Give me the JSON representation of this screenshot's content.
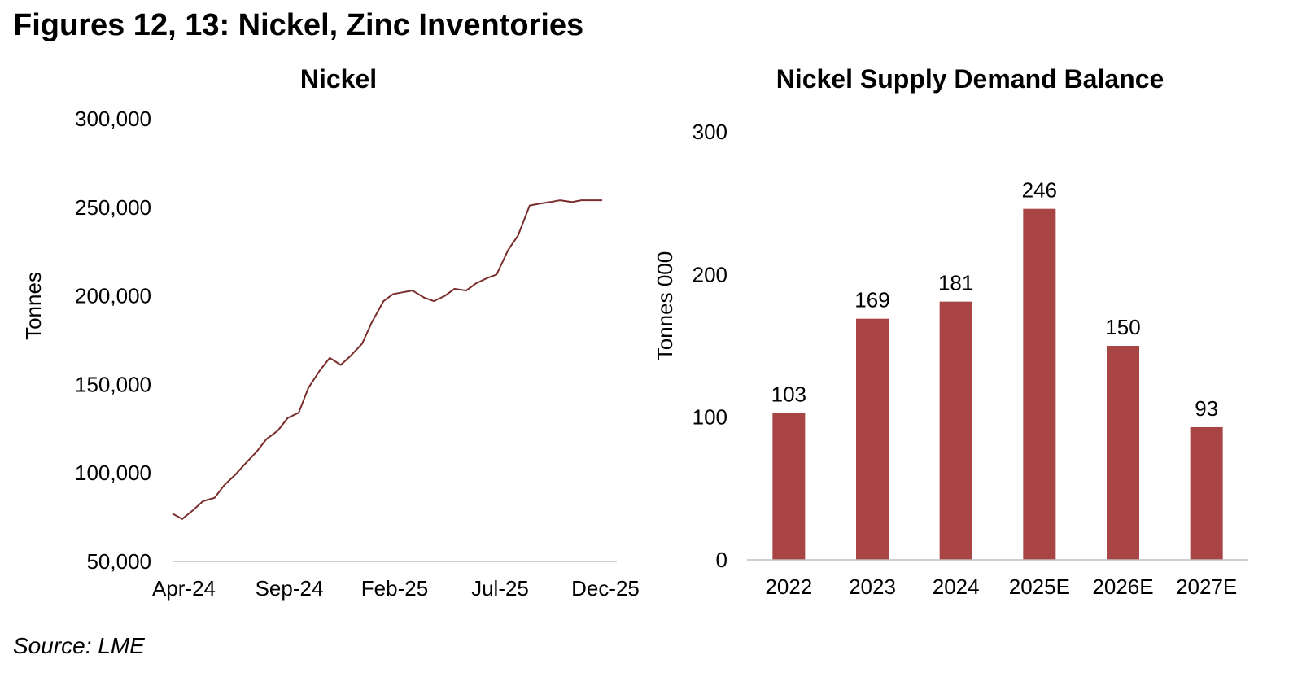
{
  "figure_title": "Figures 12, 13: Nickel, Zinc Inventories",
  "source": "Source: LME",
  "chart_data": [
    {
      "type": "line",
      "title": "Nickel",
      "xlabel": "",
      "ylabel": "Tonnes",
      "ylim": [
        50000,
        300000
      ],
      "yticks": [
        50000,
        100000,
        150000,
        200000,
        250000,
        300000
      ],
      "ytick_labels": [
        "50,000",
        "100,000",
        "150,000",
        "200,000",
        "250,000",
        "300,000"
      ],
      "xtick_labels": [
        "Apr-24",
        "Sep-24",
        "Feb-25",
        "Jul-25",
        "Dec-25"
      ],
      "grid": false,
      "color": "#7a2e2e",
      "series": [
        {
          "x": [
            "2024-04-01",
            "2024-04-15",
            "2024-05-01",
            "2024-05-15",
            "2024-06-01",
            "2024-06-15",
            "2024-07-01",
            "2024-07-15",
            "2024-08-01",
            "2024-08-15",
            "2024-09-01",
            "2024-09-15",
            "2024-10-01",
            "2024-10-15",
            "2024-11-01",
            "2024-11-15",
            "2024-12-01",
            "2024-12-15",
            "2025-01-01",
            "2025-01-15",
            "2025-02-01",
            "2025-02-15",
            "2025-03-01",
            "2025-03-15",
            "2025-04-01",
            "2025-04-15",
            "2025-05-01",
            "2025-05-15",
            "2025-06-01",
            "2025-06-15",
            "2025-07-01",
            "2025-07-15",
            "2025-08-01",
            "2025-08-15",
            "2025-09-01",
            "2025-09-15",
            "2025-10-01",
            "2025-10-15",
            "2025-11-01",
            "2025-11-15",
            "2025-12-01",
            "2025-12-15"
          ],
          "values": [
            77000,
            74000,
            79000,
            84000,
            86000,
            93000,
            99000,
            105000,
            112000,
            119000,
            124000,
            131000,
            134000,
            148000,
            158000,
            165000,
            161000,
            166000,
            173000,
            185000,
            197000,
            201000,
            202000,
            203000,
            199000,
            197000,
            200000,
            204000,
            203000,
            207000,
            210000,
            212000,
            226000,
            234000,
            251000,
            252000,
            253000,
            254000,
            253000,
            254000,
            254000,
            254000
          ]
        }
      ]
    },
    {
      "type": "bar",
      "title": "Nickel Supply Demand Balance",
      "xlabel": "",
      "ylabel": "Tonnes 000",
      "ylim": [
        0,
        300
      ],
      "yticks": [
        0,
        100,
        200,
        300
      ],
      "categories": [
        "2022",
        "2023",
        "2024",
        "2025E",
        "2026E",
        "2027E"
      ],
      "values": [
        103,
        169,
        181,
        246,
        150,
        93
      ],
      "grid": false,
      "color": "#a84444"
    }
  ]
}
